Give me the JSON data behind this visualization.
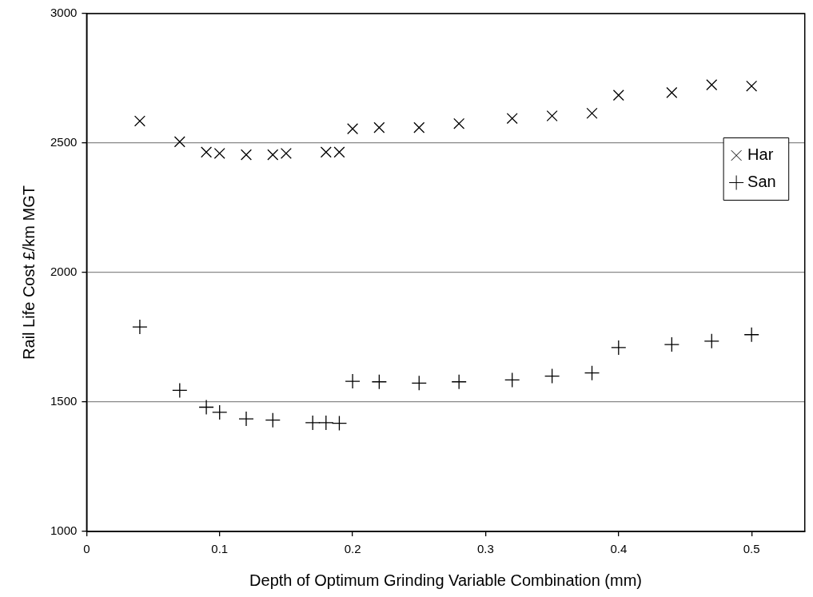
{
  "chart_data": {
    "type": "scatter",
    "xlabel": "Depth of Optimum Grinding Variable Combination (mm)",
    "ylabel": "Rail Life Cost £/km MGT",
    "x": [
      0.04,
      0.07,
      0.09,
      0.1,
      0.12,
      0.14,
      0.15,
      0.18,
      0.19,
      0.2,
      0.22,
      0.25,
      0.28,
      0.32,
      0.35,
      0.38,
      0.4,
      0.44,
      0.47,
      0.5
    ],
    "series": [
      {
        "name": "Har",
        "color": "#000000",
        "marker": "cross",
        "values": [
          2585,
          2505,
          2465,
          2460,
          2455,
          2455,
          2460,
          2465,
          2465,
          2555,
          2560,
          2560,
          2575,
          2595,
          2605,
          2615,
          2685,
          2695,
          2725,
          2720
        ]
      },
      {
        "name": "San",
        "color": "#000000",
        "marker": "plus",
        "x": [
          0.04,
          0.07,
          0.09,
          0.1,
          0.12,
          0.14,
          0.17,
          0.18,
          0.19,
          0.2,
          0.22,
          0.25,
          0.28,
          0.32,
          0.35,
          0.38,
          0.4,
          0.44,
          0.47,
          0.5
        ],
        "values": [
          1790,
          1545,
          1480,
          1460,
          1435,
          1430,
          1420,
          1420,
          1418,
          1580,
          1578,
          1573,
          1578,
          1585,
          1600,
          1612,
          1710,
          1722,
          1735,
          1760
        ]
      }
    ],
    "xlim": [
      0,
      0.54
    ],
    "xticks": [
      0,
      0.1,
      0.2,
      0.3,
      0.4,
      0.5
    ],
    "ylim": [
      1000,
      3000
    ],
    "yticks": [
      1000,
      1500,
      2000,
      2500,
      3000
    ],
    "grid": "y",
    "legend": "right"
  }
}
